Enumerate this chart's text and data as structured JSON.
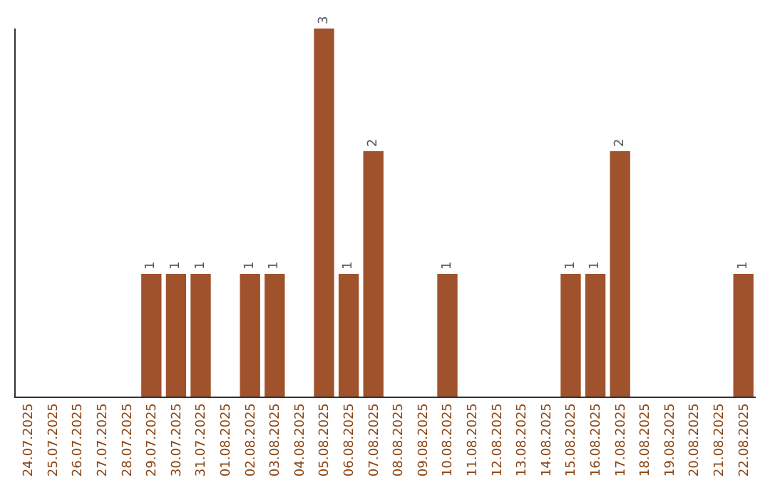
{
  "chart_data": {
    "type": "bar",
    "categories": [
      "24.07.2025",
      "25.07.2025",
      "26.07.2025",
      "27.07.2025",
      "28.07.2025",
      "29.07.2025",
      "30.07.2025",
      "31.07.2025",
      "01.08.2025",
      "02.08.2025",
      "03.08.2025",
      "04.08.2025",
      "05.08.2025",
      "06.08.2025",
      "07.08.2025",
      "08.08.2025",
      "09.08.2025",
      "10.08.2025",
      "11.08.2025",
      "12.08.2025",
      "13.08.2025",
      "14.08.2025",
      "15.08.2025",
      "16.08.2025",
      "17.08.2025",
      "18.08.2025",
      "19.08.2025",
      "20.08.2025",
      "21.08.2025",
      "22.08.2025"
    ],
    "values": [
      0,
      0,
      0,
      0,
      0,
      1,
      1,
      1,
      0,
      1,
      1,
      0,
      3,
      1,
      2,
      0,
      0,
      1,
      0,
      0,
      0,
      0,
      1,
      1,
      2,
      0,
      0,
      0,
      0,
      1
    ],
    "value_labels": [
      null,
      null,
      null,
      null,
      null,
      "1",
      "1",
      "1",
      null,
      "1",
      "1",
      null,
      "3",
      "1",
      "2",
      null,
      null,
      "1",
      null,
      null,
      null,
      null,
      "1",
      "1",
      "2",
      null,
      null,
      null,
      null,
      "1"
    ],
    "color": "#a0522d",
    "ylim": [
      0,
      3
    ],
    "tick_labels": "x",
    "legend": false
  }
}
